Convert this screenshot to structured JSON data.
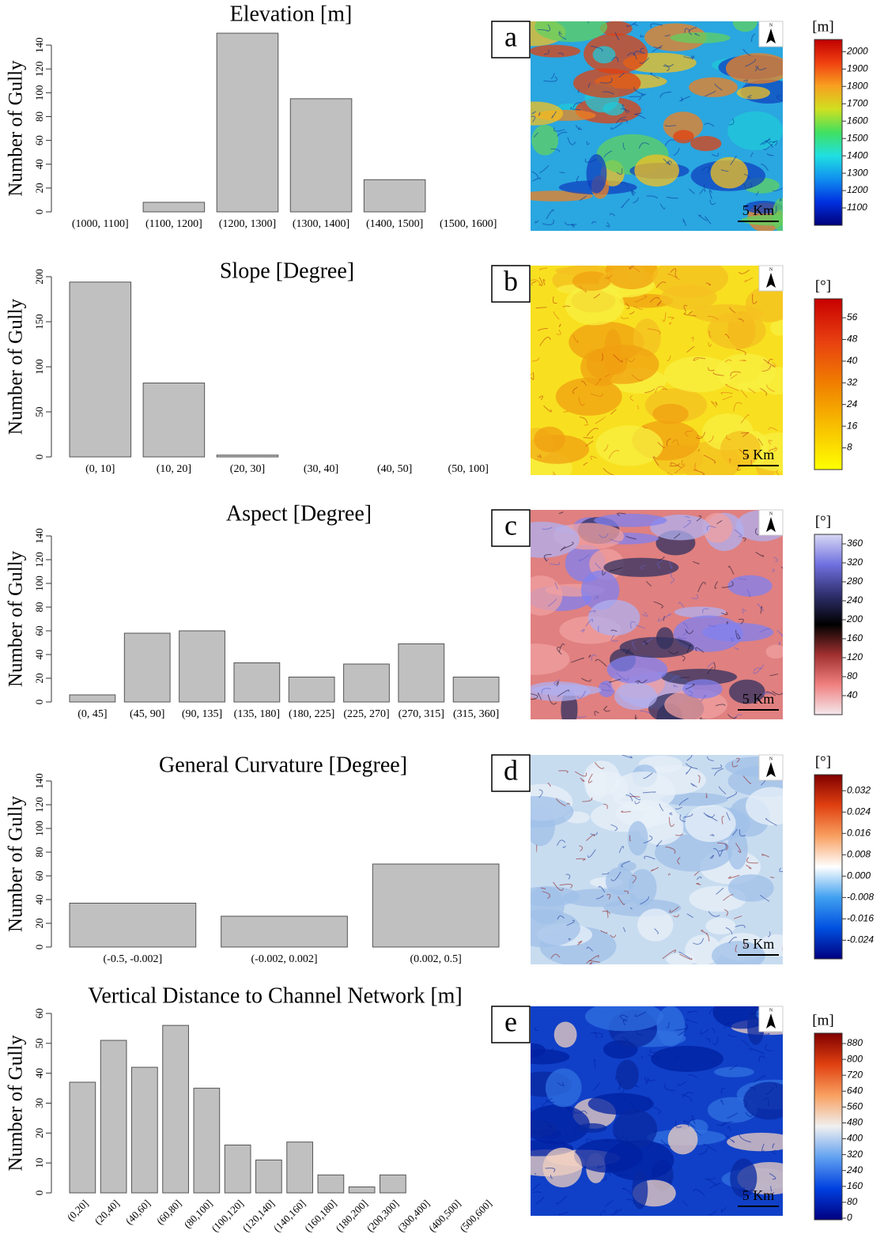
{
  "chart_data": [
    {
      "type": "bar",
      "title": "Elevation [m]",
      "ylabel": "Number of Gully",
      "color": "#c0c0c0",
      "categories": [
        "(1000, 1100]",
        "(1100, 1200]",
        "(1200, 1300]",
        "(1300, 1400]",
        "(1400, 1500]",
        "(1500, 1600]"
      ],
      "values": [
        0,
        8,
        150,
        95,
        27,
        0
      ],
      "ylim": [
        0,
        150
      ],
      "yticks": [
        0,
        20,
        40,
        60,
        80,
        100,
        120,
        140
      ]
    },
    {
      "type": "bar",
      "title": "Slope [Degree]",
      "ylabel": "Number of Gully",
      "color": "#c0c0c0",
      "categories": [
        "(0, 10]",
        "(10, 20]",
        "(20, 30]",
        "(30, 40]",
        "(40, 50]",
        "(50, 100]"
      ],
      "values": [
        194,
        82,
        2,
        0,
        0,
        0
      ],
      "ylim": [
        0,
        200
      ],
      "yticks": [
        0,
        50,
        100,
        150,
        200
      ]
    },
    {
      "type": "bar",
      "title": "Aspect [Degree]",
      "ylabel": "Number of Gully",
      "color": "#c0c0c0",
      "categories": [
        "(0, 45]",
        "(45, 90]",
        "(90, 135]",
        "(135, 180]",
        "(180, 225]",
        "(225, 270]",
        "(270, 315]",
        "(315, 360]"
      ],
      "values": [
        6,
        58,
        60,
        33,
        21,
        32,
        49,
        21
      ],
      "ylim": [
        0,
        140
      ],
      "yticks": [
        0,
        20,
        40,
        60,
        80,
        100,
        120,
        140
      ]
    },
    {
      "type": "bar",
      "title": "General Curvature [Degree]",
      "ylabel": "Number of Gully",
      "color": "#c0c0c0",
      "categories": [
        "(-0.5, -0.002]",
        "(-0.002, 0.002]",
        "(0.002, 0.5]"
      ],
      "values": [
        37,
        26,
        70
      ],
      "ylim": [
        0,
        140
      ],
      "yticks": [
        0,
        20,
        40,
        60,
        80,
        100,
        120,
        140
      ]
    },
    {
      "type": "bar",
      "title": "Vertical Distance to Channel Network [m]",
      "ylabel": "Number of Gully",
      "color": "#c0c0c0",
      "categories": [
        "(0,20]",
        "(20,40]",
        "(40,60]",
        "(60,80]",
        "(80,100]",
        "(100,120]",
        "(120,140]",
        "(140,160]",
        "(160,180]",
        "(180,200]",
        "(200,300]",
        "(300,400]",
        "(400,500]",
        "(500,600]"
      ],
      "values": [
        37,
        51,
        42,
        56,
        35,
        16,
        11,
        17,
        6,
        2,
        6,
        0,
        0,
        0
      ],
      "ylim": [
        0,
        60
      ],
      "yticks": [
        0,
        10,
        20,
        30,
        40,
        50,
        60
      ]
    }
  ],
  "maps": [
    {
      "label": "a",
      "north": "N",
      "scale_bar": "5 Km",
      "colorbar": {
        "unit": "[m]",
        "lim": [
          1000,
          2070
        ],
        "ticks": [
          1100,
          1200,
          1300,
          1400,
          1500,
          1600,
          1700,
          1800,
          1900,
          2000
        ],
        "colors": [
          "#00007a",
          "#0030e0",
          "#1090f0",
          "#20e0e0",
          "#40e060",
          "#d0e020",
          "#f8a020",
          "#f04010",
          "#c00000"
        ]
      }
    },
    {
      "label": "b",
      "north": "N",
      "scale_bar": "5 Km",
      "colorbar": {
        "unit": "[°]",
        "lim": [
          0,
          63
        ],
        "ticks": [
          8,
          16,
          24,
          32,
          40,
          48,
          56
        ],
        "colors": [
          "#ffff00",
          "#f8c000",
          "#f08000",
          "#e84010",
          "#c80000"
        ]
      }
    },
    {
      "label": "c",
      "north": "N",
      "scale_bar": "5 Km",
      "colorbar": {
        "unit": "[°]",
        "lim": [
          0,
          380
        ],
        "ticks": [
          40,
          80,
          120,
          160,
          200,
          240,
          280,
          320,
          360
        ],
        "colors": [
          "#f4e8ec",
          "#f08080",
          "#a03030",
          "#000000",
          "#303070",
          "#7070e0",
          "#d8d8f4"
        ]
      }
    },
    {
      "label": "d",
      "north": "N",
      "scale_bar": "5 Km",
      "colorbar": {
        "unit": "[°]",
        "lim": [
          -0.031,
          0.038
        ],
        "ticks": [
          -0.024,
          -0.016,
          -0.008,
          {
            "value": 0,
            "label": "0.000"
          },
          0.008,
          0.016,
          0.024,
          0.032
        ],
        "colors": [
          "#000080",
          "#0050e0",
          "#40a0f0",
          "#ffffff",
          "#f8a060",
          "#e04010",
          "#800000"
        ]
      }
    },
    {
      "label": "e",
      "north": "N",
      "scale_bar": "5 Km",
      "colorbar": {
        "unit": "[m]",
        "lim": [
          -8,
          932
        ],
        "ticks": [
          0,
          80,
          160,
          240,
          320,
          400,
          480,
          560,
          640,
          720,
          800,
          880
        ],
        "colors": [
          "#000080",
          "#0040e0",
          "#60a0f0",
          "#f0f0f0",
          "#f8a060",
          "#e04010",
          "#800000"
        ]
      }
    }
  ]
}
